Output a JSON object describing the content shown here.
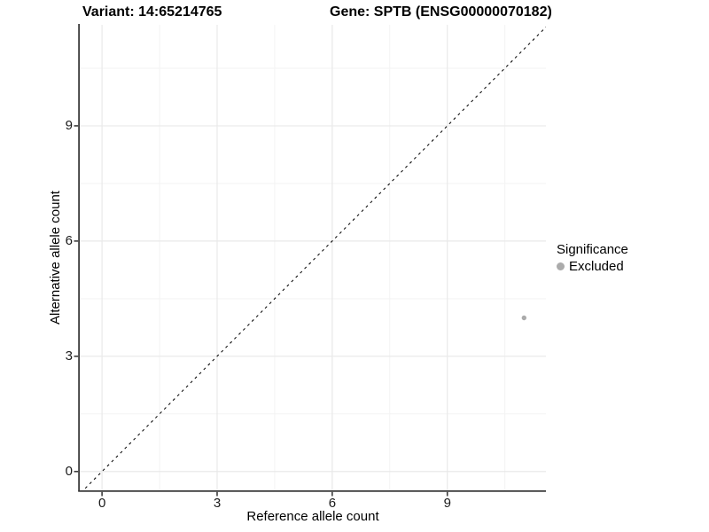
{
  "chart_data": {
    "type": "scatter",
    "titles": {
      "variant": "Variant: 14:65214765",
      "gene": "Gene: SPTB (ENSG00000070182)"
    },
    "xlabel": "Reference allele count",
    "ylabel": "Alternative allele count",
    "x_ticks": [
      0,
      3,
      6,
      9
    ],
    "y_ticks": [
      0,
      3,
      6,
      9
    ],
    "x_minor_ticks": [
      1.5,
      4.5,
      7.5,
      10.5
    ],
    "y_minor_ticks": [
      1.5,
      4.5,
      7.5,
      10.5
    ],
    "xlim": [
      -0.58,
      11.57
    ],
    "ylim": [
      -0.49,
      11.63
    ],
    "grid": true,
    "identity_line": {
      "slope": 1,
      "intercept": 0,
      "style": "dashed",
      "color": "#111111"
    },
    "points": [
      {
        "x": 11,
        "y": 4,
        "group": "Excluded"
      }
    ],
    "legend": {
      "title": "Significance",
      "position": "right",
      "items": [
        {
          "label": "Excluded",
          "color": "#ababab"
        }
      ]
    }
  },
  "colors": {
    "background": "#ffffff",
    "grid_major": "#e9e9e9",
    "grid_minor": "#f3f3f3",
    "axis_line": "#3c3c3c",
    "tick_mark": "#3c3c3c",
    "text": "#000000",
    "point": "#ababab"
  }
}
